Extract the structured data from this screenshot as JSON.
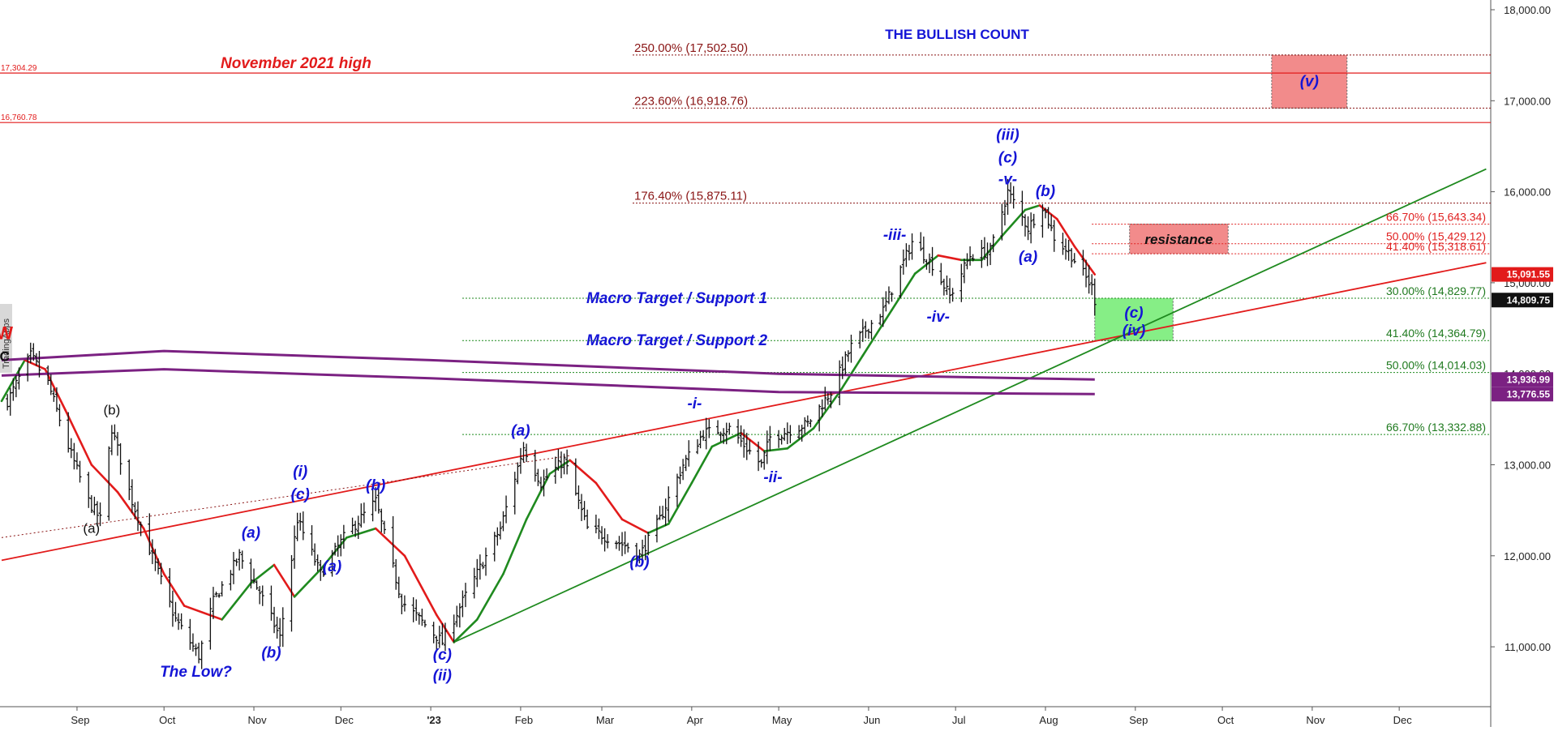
{
  "chart_data": {
    "type": "candlestick",
    "title": "THE BULLISH COUNT",
    "watermark": "TradingApps",
    "y_axis": {
      "min": 10300,
      "max": 18050,
      "ticks": [
        "11,000.00",
        "12,000.00",
        "13,000.00",
        "14,000.00",
        "15,000.00",
        "16,000.00",
        "17,000.00",
        "18,000.00"
      ],
      "tick_values": [
        11000,
        12000,
        13000,
        14000,
        15000,
        16000,
        17000,
        18000
      ],
      "side": "right"
    },
    "x_axis": {
      "ticks": [
        "Sep",
        "Oct",
        "Nov",
        "Dec",
        "'23",
        "Feb",
        "Mar",
        "Apr",
        "May",
        "Jun",
        "Jul",
        "Aug",
        "Sep",
        "Oct",
        "Nov",
        "Dec"
      ],
      "tick_positions_month_index": [
        1,
        2,
        3,
        4,
        5,
        6,
        7,
        8,
        9,
        10,
        11,
        12,
        13,
        14,
        15,
        16
      ],
      "start_month": "2022-08-06",
      "end_month": "2023-12-31"
    },
    "price_path": [
      [
        "2022-08-08",
        13700
      ],
      [
        "2022-08-16",
        14200
      ],
      [
        "2022-08-22",
        13900
      ],
      [
        "2022-08-29",
        13200
      ],
      [
        "2022-09-05",
        12600
      ],
      [
        "2022-09-09",
        12400
      ],
      [
        "2022-09-13",
        13400
      ],
      [
        "2022-09-20",
        12600
      ],
      [
        "2022-09-28",
        11900
      ],
      [
        "2022-10-05",
        11300
      ],
      [
        "2022-10-13",
        10900
      ],
      [
        "2022-10-18",
        11500
      ],
      [
        "2022-10-27",
        12000
      ],
      [
        "2022-11-03",
        11600
      ],
      [
        "2022-11-10",
        11100
      ],
      [
        "2022-11-16",
        12400
      ],
      [
        "2022-11-24",
        11800
      ],
      [
        "2022-12-02",
        12200
      ],
      [
        "2022-12-13",
        12600
      ],
      [
        "2022-12-22",
        11500
      ],
      [
        "2023-01-05",
        11050
      ],
      [
        "2023-01-12",
        11500
      ],
      [
        "2023-01-25",
        12300
      ],
      [
        "2023-02-02",
        13200
      ],
      [
        "2023-02-08",
        12800
      ],
      [
        "2023-02-16",
        13050
      ],
      [
        "2023-02-24",
        12300
      ],
      [
        "2023-03-10",
        12100
      ],
      [
        "2023-03-14",
        12000
      ],
      [
        "2023-03-21",
        12400
      ],
      [
        "2023-03-29",
        13000
      ],
      [
        "2023-04-05",
        13350
      ],
      [
        "2023-04-14",
        13400
      ],
      [
        "2023-04-25",
        13000
      ],
      [
        "2023-04-28",
        13300
      ],
      [
        "2023-05-11",
        13450
      ],
      [
        "2023-05-19",
        13800
      ],
      [
        "2023-05-26",
        14300
      ],
      [
        "2023-06-06",
        14700
      ],
      [
        "2023-06-16",
        15450
      ],
      [
        "2023-06-23",
        15200
      ],
      [
        "2023-06-29",
        14850
      ],
      [
        "2023-07-06",
        15300
      ],
      [
        "2023-07-13",
        15350
      ],
      [
        "2023-07-19",
        16000
      ],
      [
        "2023-07-26",
        15600
      ],
      [
        "2023-07-31",
        15850
      ],
      [
        "2023-08-04",
        15500
      ],
      [
        "2023-08-10",
        15300
      ],
      [
        "2023-08-17",
        14950
      ],
      [
        "2023-08-18",
        14809.75
      ]
    ],
    "moving_averages": [
      {
        "name": "short MA",
        "colors": [
          "#1f8a1f",
          "#e21b1b"
        ],
        "values": [
          [
            "2022-08-06",
            13700
          ],
          [
            "2022-08-14",
            14150
          ],
          [
            "2022-08-21",
            14050
          ],
          [
            "2022-08-28",
            13600
          ],
          [
            "2022-09-06",
            13000
          ],
          [
            "2022-09-15",
            12700
          ],
          [
            "2022-09-24",
            12300
          ],
          [
            "2022-10-01",
            11800
          ],
          [
            "2022-10-08",
            11450
          ],
          [
            "2022-10-21",
            11300
          ],
          [
            "2022-10-31",
            11700
          ],
          [
            "2022-11-08",
            11900
          ],
          [
            "2022-11-15",
            11550
          ],
          [
            "2022-11-24",
            11850
          ],
          [
            "2022-12-03",
            12200
          ],
          [
            "2022-12-13",
            12300
          ],
          [
            "2022-12-23",
            12000
          ],
          [
            "2023-01-03",
            11350
          ],
          [
            "2023-01-09",
            11050
          ],
          [
            "2023-01-17",
            11300
          ],
          [
            "2023-01-26",
            11800
          ],
          [
            "2023-02-03",
            12400
          ],
          [
            "2023-02-11",
            12900
          ],
          [
            "2023-02-18",
            13050
          ],
          [
            "2023-02-27",
            12800
          ],
          [
            "2023-03-08",
            12400
          ],
          [
            "2023-03-17",
            12250
          ],
          [
            "2023-03-24",
            12350
          ],
          [
            "2023-04-01",
            12800
          ],
          [
            "2023-04-08",
            13200
          ],
          [
            "2023-04-18",
            13350
          ],
          [
            "2023-04-26",
            13150
          ],
          [
            "2023-05-04",
            13180
          ],
          [
            "2023-05-13",
            13400
          ],
          [
            "2023-05-22",
            13800
          ],
          [
            "2023-05-30",
            14200
          ],
          [
            "2023-06-09",
            14700
          ],
          [
            "2023-06-17",
            15100
          ],
          [
            "2023-06-25",
            15300
          ],
          [
            "2023-07-03",
            15250
          ],
          [
            "2023-07-10",
            15250
          ],
          [
            "2023-07-18",
            15550
          ],
          [
            "2023-07-25",
            15800
          ],
          [
            "2023-07-30",
            15850
          ],
          [
            "2023-08-05",
            15700
          ],
          [
            "2023-08-11",
            15400
          ],
          [
            "2023-08-18",
            15091.55
          ]
        ]
      },
      {
        "name": "long MA upper",
        "color": "#7b2182",
        "values": [
          [
            "2022-08-06",
            14150
          ],
          [
            "2022-10-01",
            14250
          ],
          [
            "2023-01-01",
            14150
          ],
          [
            "2023-05-01",
            14000
          ],
          [
            "2023-08-18",
            13936.99
          ]
        ]
      },
      {
        "name": "long MA lower",
        "color": "#7b2182",
        "values": [
          [
            "2022-08-06",
            13980
          ],
          [
            "2022-10-01",
            14050
          ],
          [
            "2023-01-01",
            13950
          ],
          [
            "2023-05-01",
            13800
          ],
          [
            "2023-08-18",
            13776.55
          ]
        ]
      }
    ],
    "trendlines": [
      {
        "color": "#e21b1b",
        "from": [
          "2022-08-06",
          11950
        ],
        "to": [
          "2023-12-31",
          15220
        ]
      },
      {
        "color": "#1f8a1f",
        "from": [
          "2023-01-09",
          11050
        ],
        "to": [
          "2023-12-31",
          16250
        ]
      },
      {
        "color": "#8a1515",
        "style": "dotted",
        "from": [
          "2022-08-06",
          12200
        ],
        "to": [
          "2023-02-18",
          13100
        ]
      }
    ],
    "horizontal_levels": [
      {
        "label": "November 2021 high",
        "price": 17304.29,
        "axis_label": "17,304.29",
        "color": "#e21b1b"
      },
      {
        "price": 16760.78,
        "axis_label": "16,760.78",
        "color": "#e21b1b"
      }
    ],
    "fib_levels_upper": [
      {
        "label": "250.00% (17,502.50)",
        "price": 17502.5
      },
      {
        "label": "223.60% (16,918.76)",
        "price": 16918.76
      },
      {
        "label": "176.40% (15,875.11)",
        "price": 15875.11
      }
    ],
    "fib_levels_red": [
      {
        "label": "66.70% (15,643.34)",
        "price": 15643.34
      },
      {
        "label": "50.00% (15,429.12)",
        "price": 15429.12
      },
      {
        "label": "41.40% (15,318.61)",
        "price": 15318.61
      }
    ],
    "fib_levels_green": [
      {
        "label": "30.00% (14,829.77)",
        "price": 14829.77
      },
      {
        "label": "41.40% (14,364.79)",
        "price": 14364.79
      },
      {
        "label": "50.00% (14,014.03)",
        "price": 14014.03
      },
      {
        "label": "66.70% (13,332.88)",
        "price": 13332.88
      }
    ],
    "boxes": [
      {
        "label": "(v)",
        "color": "#f28b8b",
        "from": [
          "2023-10-18",
          17502.5
        ],
        "to": [
          "2023-11-13",
          16918.76
        ]
      },
      {
        "label": "resistance",
        "color": "#f28b8b",
        "from": [
          "2023-08-30",
          15643.34
        ],
        "to": [
          "2023-10-03",
          15318.61
        ]
      },
      {
        "label": "(c)",
        "label2": "(iv)",
        "color": "#86ee86",
        "from": [
          "2023-08-18",
          14829.77
        ],
        "to": [
          "2023-09-14",
          14364.79
        ]
      }
    ],
    "support_labels": [
      {
        "label": "Macro Target / Support 1",
        "price": 14829.77
      },
      {
        "label": "Macro Target / Support 2",
        "price": 14364.79
      }
    ],
    "annotations": [
      {
        "text": "W",
        "at": [
          "2022-08-07",
          14380
        ],
        "style": "red-bold"
      },
      {
        "text": "C",
        "at": [
          "2022-08-07",
          14140
        ],
        "style": "black-bold"
      },
      {
        "text": "(b)",
        "at": [
          "2022-09-13",
          13550
        ],
        "style": "black"
      },
      {
        "text": "(a)",
        "at": [
          "2022-09-06",
          12250
        ],
        "style": "black"
      },
      {
        "text": "The Low?",
        "at": [
          "2022-10-12",
          10670
        ],
        "style": "blue"
      },
      {
        "text": "(a)",
        "at": [
          "2022-10-31",
          12200
        ],
        "style": "blue"
      },
      {
        "text": "(b)",
        "at": [
          "2022-11-07",
          10880
        ],
        "style": "blue"
      },
      {
        "text": "(i)",
        "at": [
          "2022-11-17",
          12870
        ],
        "style": "blue"
      },
      {
        "text": "(c)",
        "at": [
          "2022-11-17",
          12620
        ],
        "style": "blue"
      },
      {
        "text": "(a)",
        "at": [
          "2022-11-28",
          11830
        ],
        "style": "blue"
      },
      {
        "text": "(b)",
        "at": [
          "2022-12-13",
          12720
        ],
        "style": "blue"
      },
      {
        "text": "(c)",
        "at": [
          "2023-01-05",
          10860
        ],
        "style": "blue"
      },
      {
        "text": "(ii)",
        "at": [
          "2023-01-05",
          10630
        ],
        "style": "blue"
      },
      {
        "text": "(a)",
        "at": [
          "2023-02-01",
          13320
        ],
        "style": "blue"
      },
      {
        "text": "(b)",
        "at": [
          "2023-03-14",
          11880
        ],
        "style": "blue"
      },
      {
        "text": "-i-",
        "at": [
          "2023-04-02",
          13620
        ],
        "style": "blue"
      },
      {
        "text": "-ii-",
        "at": [
          "2023-04-29",
          12810
        ],
        "style": "blue"
      },
      {
        "text": "-iii-",
        "at": [
          "2023-06-10",
          15470
        ],
        "style": "blue"
      },
      {
        "text": "-iv-",
        "at": [
          "2023-06-25",
          14570
        ],
        "style": "blue"
      },
      {
        "text": "(iii)",
        "at": [
          "2023-07-19",
          16570
        ],
        "style": "blue"
      },
      {
        "text": "(c)",
        "at": [
          "2023-07-19",
          16320
        ],
        "style": "blue"
      },
      {
        "text": "-v-",
        "at": [
          "2023-07-19",
          16080
        ],
        "style": "blue"
      },
      {
        "text": "(b)",
        "at": [
          "2023-08-01",
          15950
        ],
        "style": "blue"
      },
      {
        "text": "(a)",
        "at": [
          "2023-07-26",
          15230
        ],
        "style": "blue"
      }
    ],
    "last_prices": [
      {
        "label": "15,091.55",
        "price": 15091.55,
        "color": "#e21b1b"
      },
      {
        "label": "14,809.75",
        "price": 14809.75,
        "color": "#111111"
      },
      {
        "label": "13,936.99",
        "price": 13936.99,
        "color": "#7b2182"
      },
      {
        "label": "13,776.55",
        "price": 13776.55,
        "color": "#7b2182"
      }
    ],
    "grid": false,
    "legend": "none"
  }
}
